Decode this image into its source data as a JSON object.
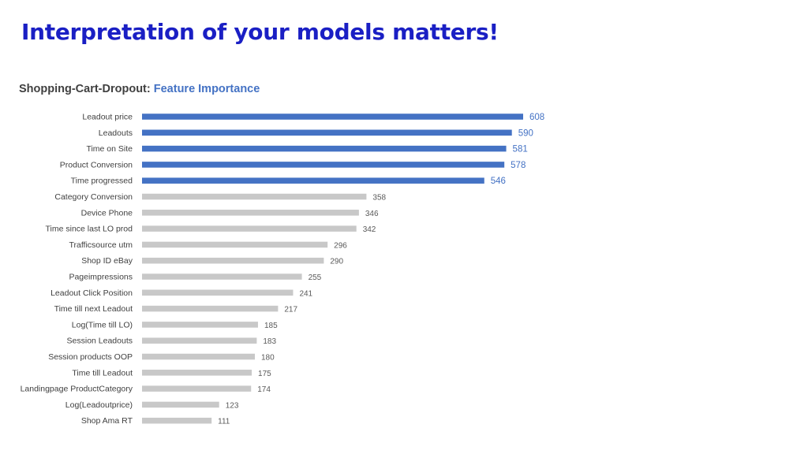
{
  "slide": {
    "title": "Interpretation of your models matters!"
  },
  "colors": {
    "title": "#1a1fc4",
    "highlight_bar": "#4472c4",
    "normal_bar": "#c8c8c8"
  },
  "chart_data": {
    "type": "bar",
    "orientation": "horizontal",
    "title_prefix": "Shopping-Cart-Dropout:",
    "title_accent": "Feature Importance",
    "categories": [
      "Leadout price",
      "Leadouts",
      "Time on Site",
      "Product Conversion",
      "Time progressed",
      "Category Conversion",
      "Device Phone",
      "Time since last LO prod",
      "Trafficsource utm",
      "Shop ID eBay",
      "Pageimpressions",
      "Leadout Click Position",
      "Time till next Leadout",
      "Log(Time till LO)",
      "Session Leadouts",
      "Session products OOP",
      "Time till Leadout",
      "Landingpage ProductCategory",
      "Log(Leadoutprice)",
      "Shop Ama RT"
    ],
    "values": [
      608,
      590,
      581,
      578,
      546,
      358,
      346,
      342,
      296,
      290,
      255,
      241,
      217,
      185,
      183,
      180,
      175,
      174,
      123,
      111
    ],
    "highlighted_count": 5,
    "xlim": [
      0,
      608
    ],
    "grid": false,
    "legend": "none"
  }
}
